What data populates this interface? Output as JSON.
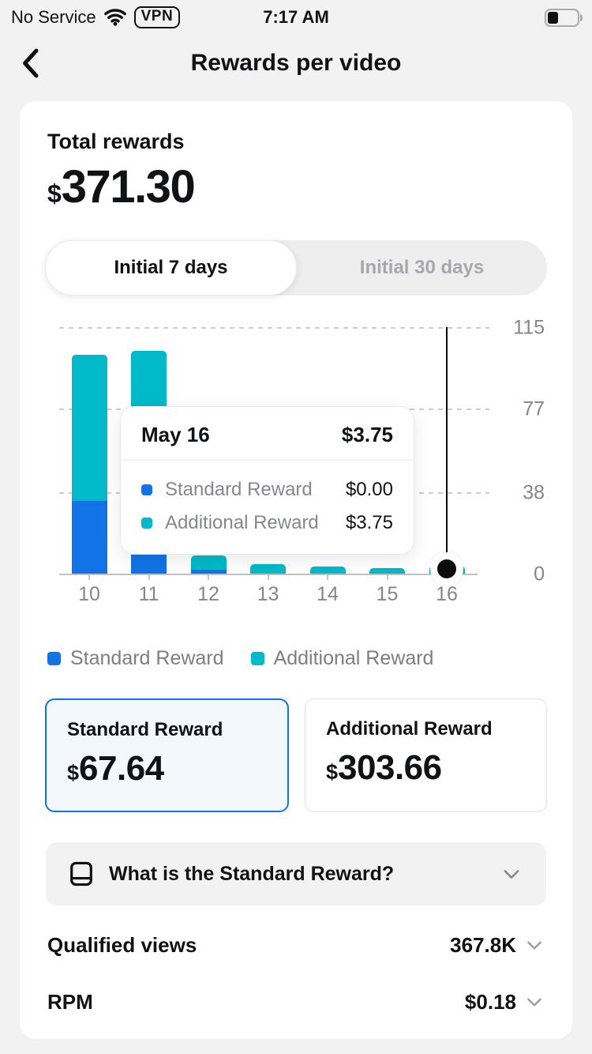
{
  "status_bar": {
    "carrier": "No Service",
    "vpn_label": "VPN",
    "time": "7:17 AM",
    "battery_level": 35
  },
  "header": {
    "title": "Rewards per video"
  },
  "summary": {
    "label": "Total rewards",
    "currency": "$",
    "amount": "371.30"
  },
  "tabs": [
    {
      "label": "Initial 7 days",
      "selected": true
    },
    {
      "label": "Initial 30 days",
      "selected": false
    }
  ],
  "chart_data": {
    "type": "bar",
    "stacked": true,
    "categories": [
      "10",
      "11",
      "12",
      "13",
      "14",
      "15",
      "16"
    ],
    "series": [
      {
        "name": "Standard Reward",
        "color": "#1273e6",
        "values": [
          34,
          30,
          2,
          0,
          0,
          0,
          0
        ]
      },
      {
        "name": "Additional Reward",
        "color": "#00b9c9",
        "values": [
          68,
          74,
          6.5,
          4.5,
          3.5,
          2.5,
          3.75
        ]
      }
    ],
    "ylim": [
      0,
      115
    ],
    "yticks": [
      115,
      77,
      38,
      0
    ],
    "selected_index": 6,
    "grid": "dashed-horizontal",
    "legend_position": "bottom"
  },
  "tooltip": {
    "title": "May 16",
    "total": "$3.75",
    "rows": [
      {
        "label": "Standard Reward",
        "value": "$0.00",
        "color": "#1273e6"
      },
      {
        "label": "Additional Reward",
        "value": "$3.75",
        "color": "#00b9c9"
      }
    ]
  },
  "reward_cards": [
    {
      "title": "Standard Reward",
      "currency": "$",
      "amount": "67.64",
      "selected": true
    },
    {
      "title": "Additional Reward",
      "currency": "$",
      "amount": "303.66",
      "selected": false
    }
  ],
  "faq": {
    "question": "What is the Standard Reward?"
  },
  "stats": [
    {
      "label": "Qualified views",
      "value": "367.8K"
    },
    {
      "label": "RPM",
      "value": "$0.18"
    }
  ],
  "colors": {
    "standard": "#1273e6",
    "additional": "#00b9c9",
    "accent": "#1273e6",
    "axis_text": "#84868c",
    "page_bg": "#f2f2f3"
  }
}
